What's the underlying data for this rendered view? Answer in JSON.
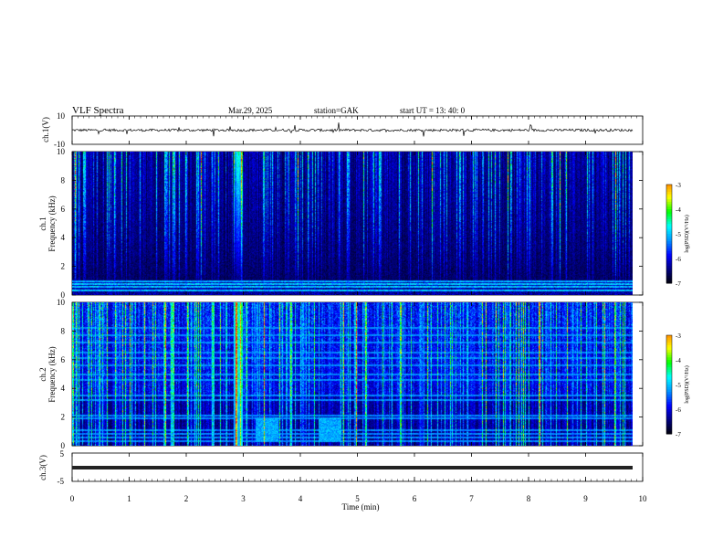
{
  "header": {
    "title": "VLF  Spectra",
    "date": "Mar.29,  2025",
    "station": "station=GAK",
    "start_ut": "start  UT  =   13: 40: 0"
  },
  "chart_data": [
    {
      "type": "line",
      "panel": "ch1-waveform",
      "ylabel": "ch.1(V)",
      "ylim": [
        -10,
        10
      ],
      "yticks": [
        "10",
        "-10"
      ],
      "xlim": [
        0,
        10
      ],
      "baseline": 0,
      "description_values": {
        "mean": 0,
        "typical_amplitude": 1.5
      }
    },
    {
      "type": "heatmap",
      "panel": "ch1-spectrogram",
      "ylabel": "ch.1\nFrequency  (kHz)",
      "ylim": [
        0,
        10
      ],
      "yticks": [
        "0",
        "2",
        "4",
        "6",
        "8",
        "10"
      ],
      "xlim": [
        0,
        9.8
      ],
      "colorbar": {
        "label": "log(PSD)(V²/Hz)",
        "range": [
          -7,
          -3
        ],
        "ticks": [
          "-3",
          "-4",
          "-5",
          "-6",
          "-7"
        ]
      },
      "features": {
        "lowband_lines_khz": [
          0.3,
          0.55,
          0.75,
          0.95
        ],
        "strong_burst_min": 2.9
      }
    },
    {
      "type": "heatmap",
      "panel": "ch2-spectrogram",
      "ylabel": "ch.2\nFrequency  (kHz)",
      "ylim": [
        0,
        10
      ],
      "yticks": [
        "0",
        "2",
        "4",
        "6",
        "8",
        "10"
      ],
      "xlim": [
        0,
        9.8
      ],
      "colorbar": {
        "label": "log(PSD)(V²/Hz)",
        "range": [
          -7,
          -3
        ],
        "ticks": [
          "-3",
          "-4",
          "-5",
          "-6",
          "-7"
        ]
      },
      "features": {
        "horizontal_lines_khz": [
          0.3,
          0.55,
          0.8,
          1.1,
          1.9,
          2.1,
          3.2,
          3.5,
          4.6,
          5.0,
          5.6,
          6.1,
          6.5,
          7.2,
          7.7,
          8.2
        ],
        "strong_burst_min": 2.9,
        "lowfreq_patches_min": [
          [
            3.2,
            3.6
          ],
          [
            4.3,
            4.7
          ]
        ]
      }
    },
    {
      "type": "line",
      "panel": "ch3-waveform",
      "ylabel": "ch.3(V)",
      "ylim": [
        -5,
        5
      ],
      "yticks": [
        "5",
        "-5"
      ],
      "xlim": [
        0,
        10
      ],
      "baseline": -2
    }
  ],
  "xaxis": {
    "label": "Time  (min)",
    "ticks": [
      "0",
      "1",
      "2",
      "3",
      "4",
      "5",
      "6",
      "7",
      "8",
      "9",
      "10"
    ]
  },
  "colors": {
    "background": "#000020",
    "cmap": [
      "#000000",
      "#00007a",
      "#0000ff",
      "#0090ff",
      "#00ffff",
      "#00ff00",
      "#ffff00",
      "#ff8000",
      "#ff0000",
      "#ffffff"
    ]
  }
}
